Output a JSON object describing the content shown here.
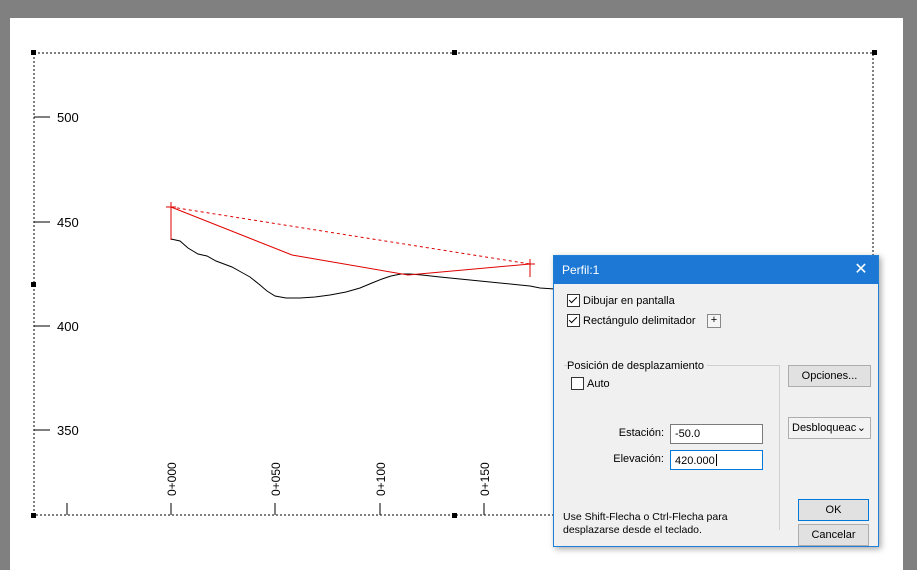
{
  "plot": {
    "y_ticks": [
      "500",
      "450",
      "400",
      "350"
    ],
    "station_labels": [
      "0+000",
      "0+050",
      "0+100",
      "0+150"
    ]
  },
  "dialog": {
    "title": "Perfil:1",
    "close_glyph": "✕",
    "draw_on_screen": {
      "label": "Dibujar en pantalla",
      "checked": true
    },
    "bounding_rect": {
      "label": "Rectángulo delimitador",
      "checked": true
    },
    "plus_label": "+",
    "offset_group": {
      "label": "Posición de desplazamiento",
      "auto": {
        "label": "Auto",
        "checked": false
      }
    },
    "station": {
      "label": "Estación:",
      "value": "-50.0"
    },
    "elevation": {
      "label": "Elevación:",
      "value": "420.000"
    },
    "options_button": "Opciones...",
    "lock_select": "Desbloqueac",
    "hint": "Use Shift-Flecha o Ctrl-Flecha para desplazarse desde el teclado.",
    "ok_button": "OK",
    "cancel_button": "Cancelar"
  },
  "colors": {
    "profile_line": "#e00000",
    "terrain_line": "#000000",
    "titlebar": "#1c78d4"
  }
}
